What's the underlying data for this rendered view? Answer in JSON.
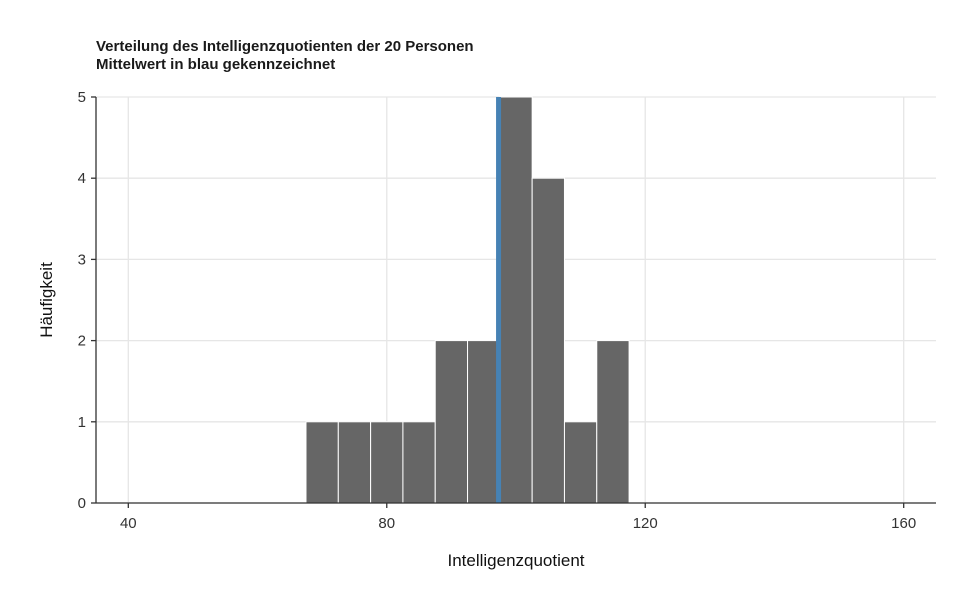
{
  "chart_data": {
    "type": "bar",
    "title": "Verteilung des Intelligenzquotienten der 20 Personen",
    "subtitle": "Mittelwert in blau gekennzeichnet",
    "xlabel": "Intelligenzquotient",
    "ylabel": "Häufigkeit",
    "xlim": [
      35,
      165
    ],
    "ylim": [
      0,
      5
    ],
    "x_ticks": [
      40,
      80,
      120,
      160
    ],
    "y_ticks": [
      0,
      1,
      2,
      3,
      4,
      5
    ],
    "bin_width": 5,
    "bins": [
      {
        "start": 67.5,
        "end": 72.5,
        "count": 1
      },
      {
        "start": 72.5,
        "end": 77.5,
        "count": 1
      },
      {
        "start": 77.5,
        "end": 82.5,
        "count": 1
      },
      {
        "start": 82.5,
        "end": 87.5,
        "count": 1
      },
      {
        "start": 87.5,
        "end": 92.5,
        "count": 2
      },
      {
        "start": 92.5,
        "end": 97.5,
        "count": 2
      },
      {
        "start": 97.5,
        "end": 102.5,
        "count": 5
      },
      {
        "start": 102.5,
        "end": 107.5,
        "count": 4
      },
      {
        "start": 107.5,
        "end": 112.5,
        "count": 1
      },
      {
        "start": 112.5,
        "end": 117.5,
        "count": 2
      }
    ],
    "mean": 97.3,
    "mean_color": "#4682b4",
    "bar_color": "#666666",
    "grid": true
  }
}
